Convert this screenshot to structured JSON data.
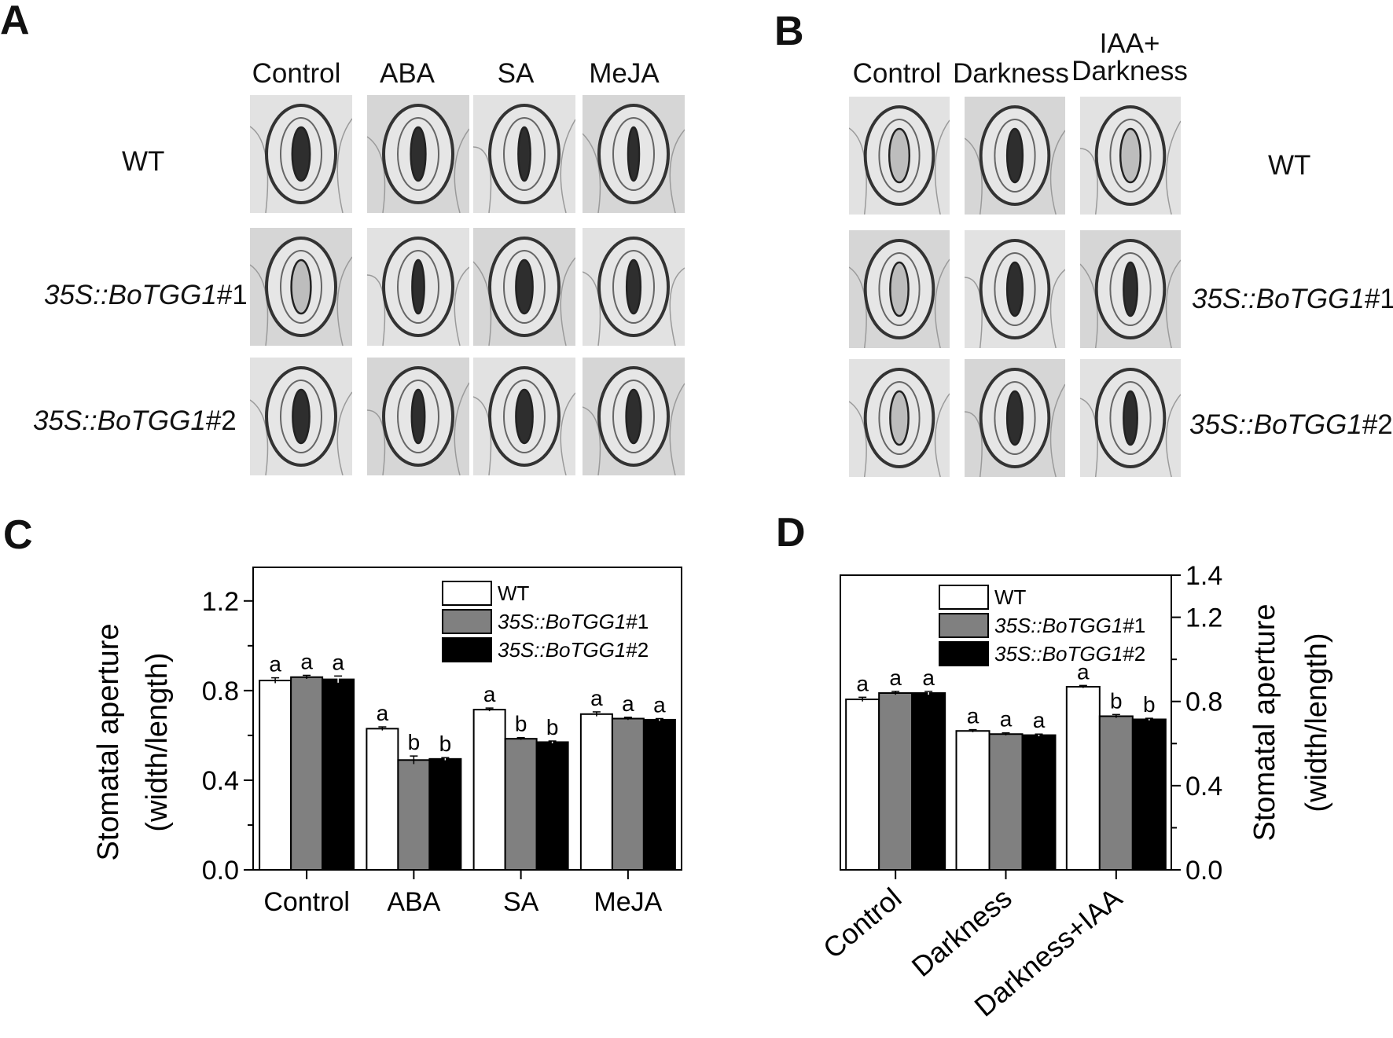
{
  "panels": {
    "a": "A",
    "b": "B",
    "c": "C",
    "d": "D"
  },
  "micrographs_a": {
    "columns": [
      "Control",
      "ABA",
      "SA",
      "MeJA"
    ],
    "rows": [
      {
        "label": "WT",
        "italic": "",
        "suffix": ""
      },
      {
        "label": "",
        "italic": "35S::BoTGG1",
        "suffix": "#1"
      },
      {
        "label": "",
        "italic": "35S::BoTGG1",
        "suffix": "#2"
      }
    ],
    "pore_openness": [
      [
        0.6,
        0.45,
        0.3,
        0.25
      ],
      [
        0.7,
        0.3,
        0.55,
        0.4
      ],
      [
        0.55,
        0.35,
        0.55,
        0.45
      ]
    ]
  },
  "micrographs_b": {
    "columns": [
      "Control",
      "Darkness",
      "IAA+\nDarkness"
    ],
    "rows": [
      {
        "label": "WT",
        "italic": "",
        "suffix": ""
      },
      {
        "label": "",
        "italic": "35S::BoTGG1",
        "suffix": "#1"
      },
      {
        "label": "",
        "italic": "35S::BoTGG1",
        "suffix": "#2"
      }
    ],
    "pore_openness": [
      [
        0.75,
        0.5,
        0.75
      ],
      [
        0.65,
        0.5,
        0.4
      ],
      [
        0.65,
        0.5,
        0.4
      ]
    ]
  },
  "chart_data": [
    {
      "type": "bar",
      "panel": "C",
      "categories": [
        "Control",
        "ABA",
        "SA",
        "MeJA"
      ],
      "series": [
        {
          "name": "WT",
          "values": [
            0.845,
            0.63,
            0.715,
            0.695
          ],
          "errors": [
            0.012,
            0.008,
            0.007,
            0.01
          ],
          "letters": [
            "a",
            "a",
            "a",
            "a"
          ],
          "color": "#ffffff"
        },
        {
          "name": "35S::BoTGG1#1",
          "values": [
            0.86,
            0.49,
            0.585,
            0.675
          ],
          "errors": [
            0.008,
            0.018,
            0.005,
            0.006
          ],
          "letters": [
            "a",
            "b",
            "b",
            "a"
          ],
          "color": "#808080"
        },
        {
          "name": "35S::BoTGG1#2",
          "values": [
            0.85,
            0.495,
            0.57,
            0.67
          ],
          "errors": [
            0.015,
            0.006,
            0.005,
            0.005
          ],
          "letters": [
            "a",
            "b",
            "b",
            "a"
          ],
          "color": "#000000"
        }
      ],
      "ylabel_line1": "Stomatal aperture",
      "ylabel_line2": "(width/length)",
      "ylim": [
        0,
        1.35
      ],
      "yticks": [
        "0.0",
        "0.4",
        "0.8",
        "1.2"
      ],
      "ytick_values": [
        0,
        0.4,
        0.8,
        1.2
      ],
      "yaxis_side": "left",
      "legend": "top-right"
    },
    {
      "type": "bar",
      "panel": "D",
      "categories": [
        "Control",
        "Darkness",
        "Darkness+IAA"
      ],
      "series": [
        {
          "name": "WT",
          "values": [
            0.81,
            0.66,
            0.87
          ],
          "errors": [
            0.01,
            0.006,
            0.006
          ],
          "letters": [
            "a",
            "a",
            "a"
          ],
          "color": "#ffffff"
        },
        {
          "name": "35S::BoTGG1#1",
          "values": [
            0.84,
            0.645,
            0.73
          ],
          "errors": [
            0.008,
            0.006,
            0.008
          ],
          "letters": [
            "a",
            "a",
            "b"
          ],
          "color": "#808080"
        },
        {
          "name": "35S::BoTGG1#2",
          "values": [
            0.84,
            0.64,
            0.715
          ],
          "errors": [
            0.008,
            0.005,
            0.005
          ],
          "letters": [
            "a",
            "a",
            "b"
          ],
          "color": "#000000"
        }
      ],
      "ylabel_line1": "Stomatal aperture",
      "ylabel_line2": "(width/length)",
      "ylim": [
        0,
        1.4
      ],
      "yticks": [
        "0.0",
        "0.4",
        "0.8",
        "1.2",
        "1.4"
      ],
      "ytick_values": [
        0,
        0.4,
        0.8,
        1.2,
        1.4
      ],
      "yaxis_side": "right",
      "legend": "top-center"
    }
  ]
}
